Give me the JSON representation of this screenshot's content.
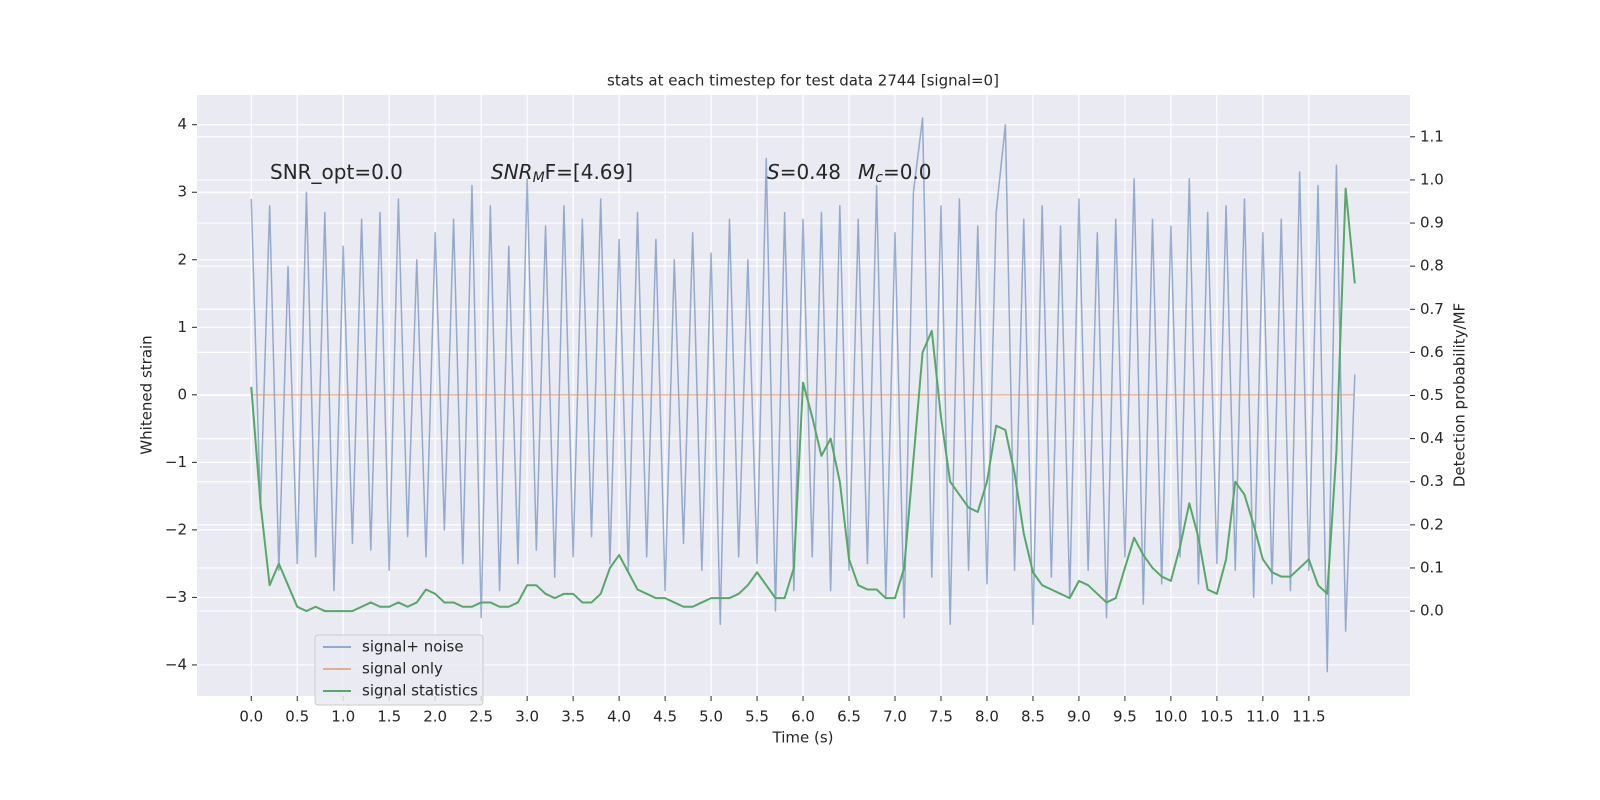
{
  "chart_data": {
    "type": "line",
    "title": "stats at each timestep for test data 2744 [signal=0]",
    "xlabel": "Time (s)",
    "ylabel": "Whitened strain",
    "y2label": "Detection probability/MF",
    "annotations": [
      {
        "parts": [
          {
            "text": "SNR_opt=0.0"
          }
        ]
      },
      {
        "parts": [
          {
            "text": "SNR",
            "style": "italic"
          },
          {
            "text": "M",
            "style": "italic-sub"
          },
          {
            "text": "F=[4.69]"
          }
        ]
      },
      {
        "parts": [
          {
            "text": "S",
            "style": "italic"
          },
          {
            "text": "=0.48"
          }
        ]
      },
      {
        "parts": [
          {
            "text": "M",
            "style": "italic"
          },
          {
            "text": "c",
            "style": "italic-sub"
          },
          {
            "text": "=0.0"
          }
        ]
      }
    ],
    "x": [
      0.0,
      0.1,
      0.2,
      0.3,
      0.4,
      0.5,
      0.6,
      0.7,
      0.8,
      0.9,
      1.0,
      1.1,
      1.2,
      1.3,
      1.4,
      1.5,
      1.6,
      1.7,
      1.8,
      1.9,
      2.0,
      2.1,
      2.2,
      2.3,
      2.4,
      2.5,
      2.6,
      2.7,
      2.8,
      2.9,
      3.0,
      3.1,
      3.2,
      3.3,
      3.4,
      3.5,
      3.6,
      3.7,
      3.8,
      3.9,
      4.0,
      4.1,
      4.2,
      4.3,
      4.4,
      4.5,
      4.6,
      4.7,
      4.8,
      4.9,
      5.0,
      5.1,
      5.2,
      5.3,
      5.4,
      5.5,
      5.6,
      5.7,
      5.8,
      5.9,
      6.0,
      6.1,
      6.2,
      6.3,
      6.4,
      6.5,
      6.6,
      6.7,
      6.8,
      6.9,
      7.0,
      7.1,
      7.2,
      7.3,
      7.4,
      7.5,
      7.6,
      7.7,
      7.8,
      7.9,
      8.0,
      8.1,
      8.2,
      8.3,
      8.4,
      8.5,
      8.6,
      8.7,
      8.8,
      8.9,
      9.0,
      9.1,
      9.2,
      9.3,
      9.4,
      9.5,
      9.6,
      9.7,
      9.8,
      9.9,
      10.0,
      10.1,
      10.2,
      10.3,
      10.4,
      10.5,
      10.6,
      10.7,
      10.8,
      10.9,
      11.0,
      11.1,
      11.2,
      11.3,
      11.4,
      11.5,
      11.6,
      11.7,
      11.8,
      11.9,
      12.0
    ],
    "series": [
      {
        "name": "signal+ noise",
        "color": "#4c72b0",
        "alpha": 0.55,
        "values": [
          2.9,
          -1.7,
          2.8,
          -2.6,
          1.9,
          -2.5,
          3.0,
          -2.4,
          2.7,
          -2.9,
          2.2,
          -2.2,
          2.6,
          -2.3,
          2.7,
          -2.6,
          2.9,
          -2.1,
          2.0,
          -2.4,
          2.4,
          -2.0,
          2.6,
          -2.5,
          3.1,
          -3.3,
          2.8,
          -2.9,
          2.2,
          -2.5,
          3.2,
          -2.3,
          2.5,
          -2.7,
          2.8,
          -2.4,
          2.6,
          -2.1,
          2.9,
          -2.5,
          2.3,
          -2.6,
          2.7,
          -2.4,
          2.3,
          -2.9,
          2.0,
          -2.2,
          2.4,
          -2.6,
          2.1,
          -3.4,
          2.6,
          -2.4,
          2.0,
          -2.5,
          3.5,
          -3.2,
          2.7,
          -2.9,
          2.6,
          -2.4,
          2.7,
          -2.9,
          2.8,
          -2.6,
          2.6,
          -2.5,
          3.1,
          -3.0,
          2.4,
          -3.3,
          3.0,
          4.1,
          -2.7,
          2.8,
          -3.4,
          2.9,
          -2.6,
          2.5,
          -2.8,
          2.7,
          4.0,
          -2.6,
          2.6,
          -3.4,
          2.8,
          -2.7,
          2.5,
          -3.0,
          2.9,
          -2.6,
          2.4,
          -3.3,
          2.6,
          -2.4,
          3.2,
          -3.1,
          2.6,
          -2.8,
          2.5,
          -2.4,
          3.2,
          -2.8,
          2.7,
          -2.5,
          2.8,
          -2.6,
          2.9,
          -3.0,
          2.4,
          -2.8,
          2.6,
          -2.9,
          3.3,
          -2.6,
          3.1,
          -4.1,
          3.4,
          -3.5,
          0.3
        ]
      },
      {
        "name": "signal only",
        "color": "#dd8452",
        "alpha": 0.6,
        "values": [
          0,
          0,
          0,
          0,
          0,
          0,
          0,
          0,
          0,
          0,
          0,
          0,
          0,
          0,
          0,
          0,
          0,
          0,
          0,
          0,
          0,
          0,
          0,
          0,
          0,
          0,
          0,
          0,
          0,
          0,
          0,
          0,
          0,
          0,
          0,
          0,
          0,
          0,
          0,
          0,
          0,
          0,
          0,
          0,
          0,
          0,
          0,
          0,
          0,
          0,
          0,
          0,
          0,
          0,
          0,
          0,
          0,
          0,
          0,
          0,
          0,
          0,
          0,
          0,
          0,
          0,
          0,
          0,
          0,
          0,
          0,
          0,
          0,
          0,
          0,
          0,
          0,
          0,
          0,
          0,
          0,
          0,
          0,
          0,
          0,
          0,
          0,
          0,
          0,
          0,
          0,
          0,
          0,
          0,
          0,
          0,
          0,
          0,
          0,
          0,
          0,
          0,
          0,
          0,
          0,
          0,
          0,
          0,
          0,
          0,
          0,
          0,
          0,
          0,
          0,
          0,
          0,
          0,
          0,
          0,
          0
        ]
      },
      {
        "name": "signal statistics",
        "color": "#55a868",
        "alpha": 1,
        "axis": "y2",
        "values": [
          0.52,
          0.25,
          0.06,
          0.11,
          0.06,
          0.01,
          0.0,
          0.01,
          0.0,
          0.0,
          0.0,
          0.0,
          0.01,
          0.02,
          0.01,
          0.01,
          0.02,
          0.01,
          0.02,
          0.05,
          0.04,
          0.02,
          0.02,
          0.01,
          0.01,
          0.02,
          0.02,
          0.01,
          0.01,
          0.02,
          0.06,
          0.06,
          0.04,
          0.03,
          0.04,
          0.04,
          0.02,
          0.02,
          0.04,
          0.1,
          0.13,
          0.09,
          0.05,
          0.04,
          0.03,
          0.03,
          0.02,
          0.01,
          0.01,
          0.02,
          0.03,
          0.03,
          0.03,
          0.04,
          0.06,
          0.09,
          0.06,
          0.03,
          0.03,
          0.1,
          0.53,
          0.45,
          0.36,
          0.4,
          0.3,
          0.12,
          0.06,
          0.05,
          0.05,
          0.03,
          0.03,
          0.1,
          0.35,
          0.6,
          0.65,
          0.45,
          0.3,
          0.27,
          0.24,
          0.23,
          0.3,
          0.43,
          0.42,
          0.32,
          0.18,
          0.09,
          0.06,
          0.05,
          0.04,
          0.03,
          0.07,
          0.06,
          0.04,
          0.02,
          0.03,
          0.1,
          0.17,
          0.13,
          0.1,
          0.08,
          0.07,
          0.15,
          0.25,
          0.17,
          0.05,
          0.04,
          0.12,
          0.3,
          0.27,
          0.2,
          0.12,
          0.09,
          0.08,
          0.08,
          0.1,
          0.12,
          0.06,
          0.04,
          0.37,
          0.98,
          0.76
        ]
      }
    ],
    "xlim": [
      -0.59,
      12.6
    ],
    "xticks": [
      {
        "value": 0,
        "label": "0.0"
      },
      {
        "value": 0.5,
        "label": "0.5"
      },
      {
        "value": 1,
        "label": "1.0"
      },
      {
        "value": 1.5,
        "label": "1.5"
      },
      {
        "value": 2,
        "label": "2.0"
      },
      {
        "value": 2.5,
        "label": "2.5"
      },
      {
        "value": 3,
        "label": "3.0"
      },
      {
        "value": 3.5,
        "label": "3.5"
      },
      {
        "value": 4,
        "label": "4.0"
      },
      {
        "value": 4.5,
        "label": "4.5"
      },
      {
        "value": 5,
        "label": "5.0"
      },
      {
        "value": 5.5,
        "label": "5.5"
      },
      {
        "value": 6,
        "label": "6.0"
      },
      {
        "value": 6.5,
        "label": "6.5"
      },
      {
        "value": 7,
        "label": "7.0"
      },
      {
        "value": 7.5,
        "label": "7.5"
      },
      {
        "value": 8,
        "label": "8.0"
      },
      {
        "value": 8.5,
        "label": "8.5"
      },
      {
        "value": 9,
        "label": "9.0"
      },
      {
        "value": 9.5,
        "label": "9.5"
      },
      {
        "value": 10,
        "label": "10.0"
      },
      {
        "value": 10.5,
        "label": "10.5"
      },
      {
        "value": 11,
        "label": "11.0"
      },
      {
        "value": 11.5,
        "label": "11.5"
      }
    ],
    "ylim": [
      -4.46,
      4.44
    ],
    "yticks": [
      {
        "value": -4,
        "label": "−4"
      },
      {
        "value": -3,
        "label": "−3"
      },
      {
        "value": -2,
        "label": "−2"
      },
      {
        "value": -1,
        "label": "−1"
      },
      0,
      1,
      2,
      3,
      4
    ],
    "y2lim": [
      -0.197,
      1.197
    ],
    "y2ticks": [
      {
        "value": 0,
        "label": "0.0"
      },
      {
        "value": 0.1,
        "label": "0.1"
      },
      {
        "value": 0.2,
        "label": "0.2"
      },
      {
        "value": 0.3,
        "label": "0.3"
      },
      {
        "value": 0.4,
        "label": "0.4"
      },
      {
        "value": 0.5,
        "label": "0.5"
      },
      {
        "value": 0.6,
        "label": "0.6"
      },
      {
        "value": 0.7,
        "label": "0.7"
      },
      {
        "value": 0.8,
        "label": "0.8"
      },
      {
        "value": 0.9,
        "label": "0.9"
      },
      {
        "value": 1,
        "label": "1.0"
      },
      {
        "value": 1.1,
        "label": "1.1"
      }
    ],
    "grid": true,
    "legend": "lower left",
    "background": "#eaeaf2"
  }
}
